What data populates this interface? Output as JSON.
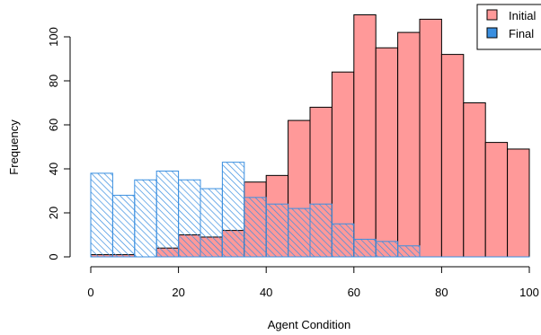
{
  "chart_data": {
    "type": "bar",
    "title": "",
    "xlabel": "Agent Condition",
    "ylabel": "Frequency",
    "xlim": [
      0,
      100
    ],
    "ylim": [
      0,
      110
    ],
    "xticks": [
      0,
      20,
      40,
      60,
      80,
      100
    ],
    "yticks": [
      0,
      20,
      40,
      60,
      80,
      100
    ],
    "bin_width": 5,
    "bin_starts": [
      0,
      5,
      10,
      15,
      20,
      25,
      30,
      35,
      40,
      45,
      50,
      55,
      60,
      65,
      70,
      75,
      80,
      85,
      90,
      95
    ],
    "legend_position": "top-right",
    "series": [
      {
        "name": "Initial",
        "color": "#ff9999",
        "fill": "solid",
        "values": [
          1,
          1,
          0,
          4,
          10,
          9,
          12,
          34,
          37,
          62,
          68,
          84,
          110,
          95,
          102,
          108,
          92,
          70,
          52,
          49
        ]
      },
      {
        "name": "Final",
        "color": "#3a8fe0",
        "fill": "hatched",
        "values": [
          38,
          28,
          35,
          39,
          35,
          31,
          43,
          27,
          24,
          22,
          24,
          15,
          8,
          7,
          5,
          0,
          0,
          0,
          0,
          0
        ]
      }
    ]
  }
}
